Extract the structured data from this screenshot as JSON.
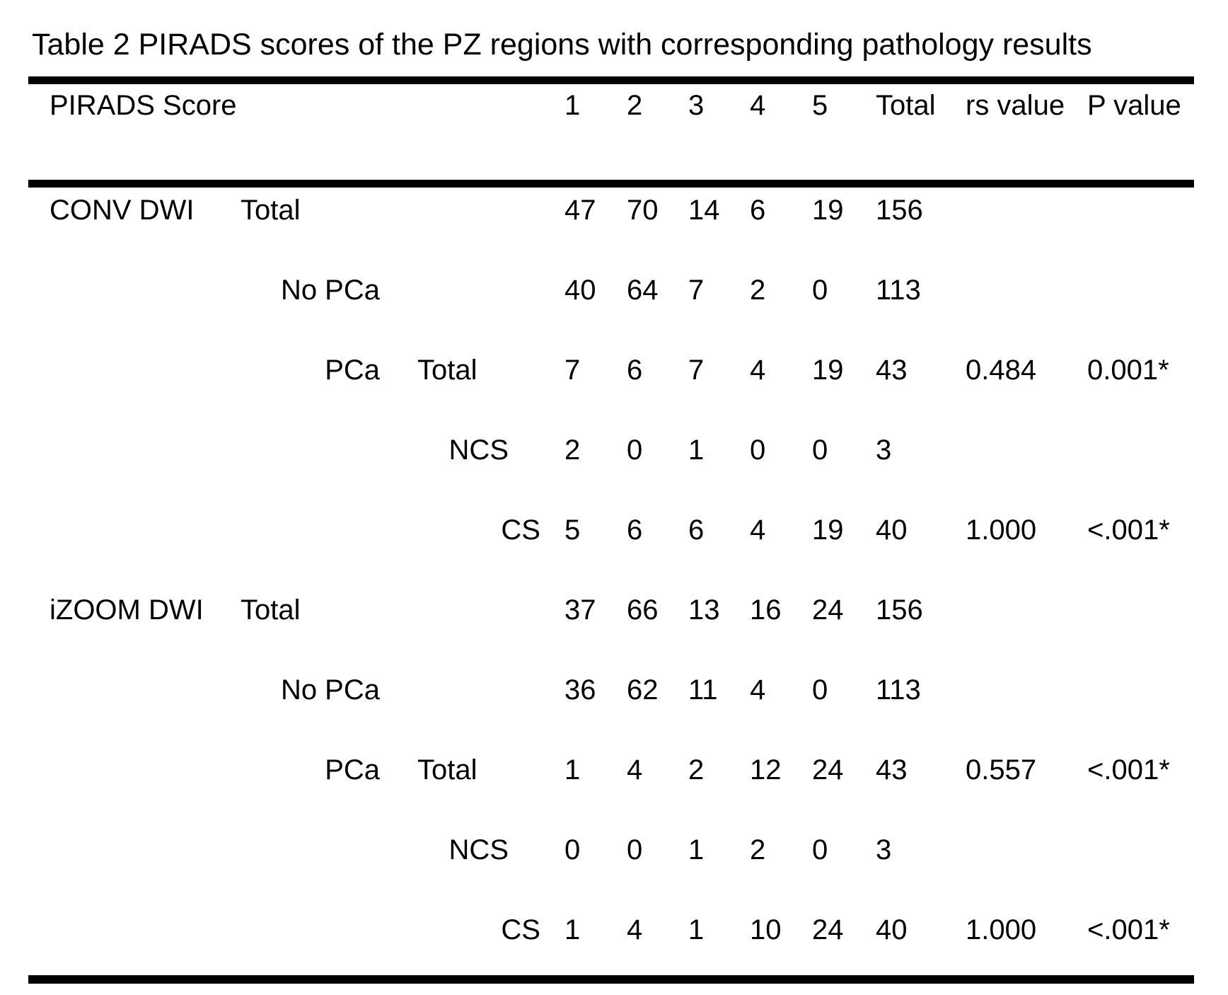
{
  "title": "Table 2 PIRADS scores of the PZ regions with corresponding pathology results",
  "header": {
    "label": "PIRADS Score",
    "score_columns": [
      "1",
      "2",
      "3",
      "4",
      "5"
    ],
    "total": "Total",
    "rs": "rs value",
    "p": "P value"
  },
  "rows": [
    {
      "l1": "CONV DWI",
      "l2": "Total",
      "scores": [
        "47",
        "70",
        "14",
        "6",
        "19"
      ],
      "total": "156",
      "rs": "",
      "p": ""
    },
    {
      "l3": "No PCa",
      "scores": [
        "40",
        "64",
        "7",
        "2",
        "0"
      ],
      "total": "113",
      "rs": "",
      "p": ""
    },
    {
      "l3": "PCa",
      "l4": "Total",
      "scores": [
        "7",
        "6",
        "7",
        "4",
        "19"
      ],
      "total": "43",
      "rs": "0.484",
      "p": "0.001*"
    },
    {
      "l5": "NCS",
      "scores": [
        "2",
        "0",
        "1",
        "0",
        "0"
      ],
      "total": "3",
      "rs": "",
      "p": ""
    },
    {
      "l6": "CS",
      "scores": [
        "5",
        "6",
        "6",
        "4",
        "19"
      ],
      "total": "40",
      "rs": "1.000",
      "p": "<.001*"
    },
    {
      "l1": "iZOOM DWI",
      "l2": "Total",
      "scores": [
        "37",
        "66",
        "13",
        "16",
        "24"
      ],
      "total": "156",
      "rs": "",
      "p": ""
    },
    {
      "l3": "No PCa",
      "scores": [
        "36",
        "62",
        "11",
        "4",
        "0"
      ],
      "total": "113",
      "rs": "",
      "p": ""
    },
    {
      "l3": "PCa",
      "l4": "Total",
      "scores": [
        "1",
        "4",
        "2",
        "12",
        "24"
      ],
      "total": "43",
      "rs": "0.557",
      "p": "<.001*"
    },
    {
      "l5": "NCS",
      "scores": [
        "0",
        "0",
        "1",
        "2",
        "0"
      ],
      "total": "3",
      "rs": "",
      "p": ""
    },
    {
      "l6": "CS",
      "scores": [
        "1",
        "4",
        "1",
        "10",
        "24"
      ],
      "total": "40",
      "rs": "1.000",
      "p": "<.001*"
    }
  ],
  "chart_data": {
    "type": "table",
    "title": "Table 2 PIRADS scores of the PZ regions with corresponding pathology results",
    "columns": [
      "PIRADS 1",
      "PIRADS 2",
      "PIRADS 3",
      "PIRADS 4",
      "PIRADS 5",
      "Total",
      "rs value",
      "P value"
    ],
    "series": [
      {
        "name": "CONV DWI Total",
        "values": [
          47,
          70,
          14,
          6,
          19,
          156
        ]
      },
      {
        "name": "CONV DWI No PCa",
        "values": [
          40,
          64,
          7,
          2,
          0,
          113
        ]
      },
      {
        "name": "CONV DWI PCa Total",
        "values": [
          7,
          6,
          7,
          4,
          19,
          43
        ],
        "rs": "0.484",
        "p": "0.001*"
      },
      {
        "name": "CONV DWI PCa NCS",
        "values": [
          2,
          0,
          1,
          0,
          0,
          3
        ]
      },
      {
        "name": "CONV DWI PCa CS",
        "values": [
          5,
          6,
          6,
          4,
          19,
          40
        ],
        "rs": "1.000",
        "p": "<.001*"
      },
      {
        "name": "iZOOM DWI Total",
        "values": [
          37,
          66,
          13,
          16,
          24,
          156
        ]
      },
      {
        "name": "iZOOM DWI No PCa",
        "values": [
          36,
          62,
          11,
          4,
          0,
          113
        ]
      },
      {
        "name": "iZOOM DWI PCa Total",
        "values": [
          1,
          4,
          2,
          12,
          24,
          43
        ],
        "rs": "0.557",
        "p": "<.001*"
      },
      {
        "name": "iZOOM DWI PCa NCS",
        "values": [
          0,
          0,
          1,
          2,
          0,
          3
        ]
      },
      {
        "name": "iZOOM DWI PCa CS",
        "values": [
          1,
          4,
          1,
          10,
          24,
          40
        ],
        "rs": "1.000",
        "p": "<.001*"
      }
    ]
  }
}
